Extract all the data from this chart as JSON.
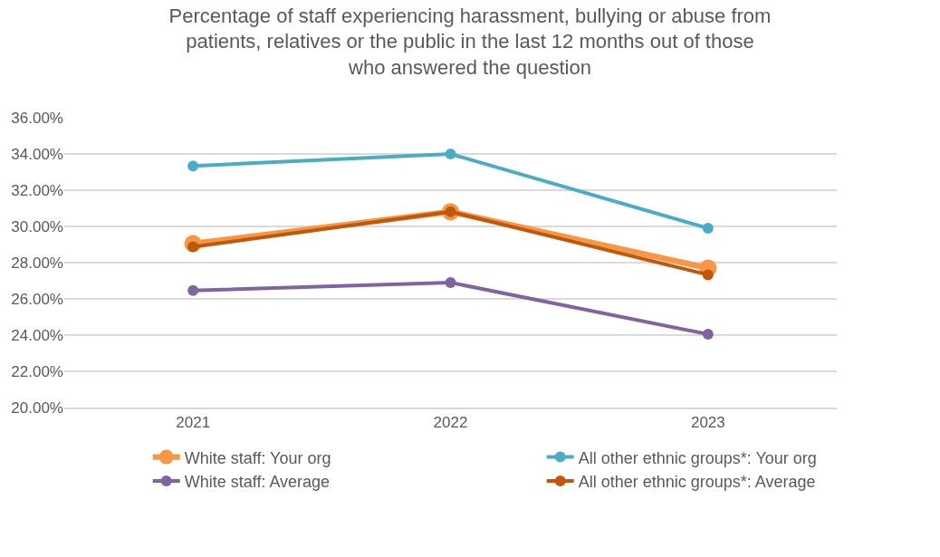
{
  "chart_data": {
    "type": "line",
    "title": "Percentage of staff experiencing harassment, bullying or abuse from patients, relatives or the public in the last 12 months out of those who answered the question",
    "categories": [
      "2021",
      "2022",
      "2023"
    ],
    "series": [
      {
        "name": "White staff: Your org",
        "color": "#f79646",
        "values": [
          29.05,
          30.81,
          27.7
        ]
      },
      {
        "name": "All other ethnic groups*: Your org",
        "color": "#4bacc6",
        "values": [
          33.34,
          34.0,
          29.9
        ]
      },
      {
        "name": "White staff: Average",
        "color": "#8064a2",
        "values": [
          26.46,
          26.9,
          24.05
        ]
      },
      {
        "name": "All other ethnic groups*: Average",
        "color": "#c0580b",
        "values": [
          28.87,
          30.81,
          27.33
        ]
      }
    ],
    "ylim": [
      20,
      36
    ],
    "yticks": [
      {
        "value": 20,
        "label": "20.00%"
      },
      {
        "value": 22,
        "label": "22.00%"
      },
      {
        "value": 24,
        "label": "24.00%"
      },
      {
        "value": 26,
        "label": "26.00%"
      },
      {
        "value": 28,
        "label": "28.00%"
      },
      {
        "value": 30,
        "label": "30.00%"
      },
      {
        "value": 32,
        "label": "32.00%"
      },
      {
        "value": 34,
        "label": "34.00%"
      },
      {
        "value": 36,
        "label": "36.00%"
      }
    ],
    "grid": "y",
    "legend": "bottom",
    "marker": "circle",
    "line_style": "solid"
  }
}
